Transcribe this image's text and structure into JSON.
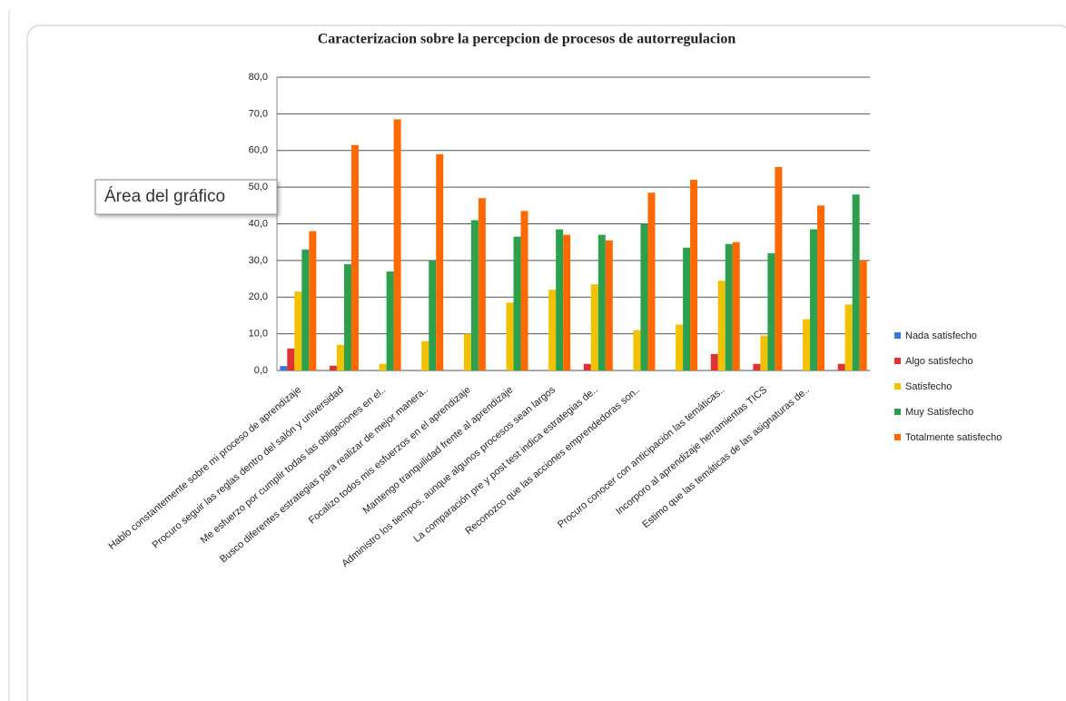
{
  "chart_data": {
    "type": "bar",
    "title": "Caracterizacion sobre  la percepcion de procesos de autorregulacion",
    "tooltip": "Área del gráfico",
    "categories": [
      "Hablo constantemente  sobre mi proceso de aprendizaje",
      "Procuro seguir  las reglas dentro del salón y universidad",
      "Me esfuerzo por cumplir todas  las obligaciones  en el..",
      "Busco diferentes estrategias  para realizar de mejor manera..",
      "Focalizo todos mis esfuerzos en el aprendizaje",
      "Mantengo tranquilidad  frente al aprendizaje",
      "Administro los tiempos, aunque algunos procesos sean largos",
      "La comparación  pre y post test indica estrategias de..",
      "Reconozco que las acciones emprendedoras  son..",
      null,
      "Procuro conocer  con anticipación las temáticas..",
      "Incorporo al aprendizaje  herramientas  TICS",
      "Estimo que las temáticas de las asignaturas de..",
      null
    ],
    "series": [
      {
        "name": "Nada satisfecho",
        "color": "#3a78d8",
        "values": [
          1.2,
          0,
          0,
          0,
          0,
          0,
          0,
          0,
          0,
          0,
          0,
          0,
          0,
          0
        ]
      },
      {
        "name": "Algo satisfecho",
        "color": "#e03232",
        "values": [
          6,
          1.3,
          0,
          0,
          0,
          0,
          0,
          1.8,
          0,
          0,
          4.5,
          1.8,
          0,
          1.8
        ]
      },
      {
        "name": "Satisfecho",
        "color": "#f2c200",
        "values": [
          21.5,
          7,
          1.8,
          8,
          10,
          18.5,
          22,
          23.5,
          11,
          12.5,
          24.5,
          9.5,
          14,
          18
        ]
      },
      {
        "name": "Muy Satisfecho",
        "color": "#2ca04c",
        "values": [
          33,
          29,
          27,
          30,
          41,
          36.5,
          38.5,
          37,
          40,
          33.5,
          34.5,
          32,
          38.5,
          48
        ]
      },
      {
        "name": "Totalmente  satisfecho",
        "color": "#ff6a00",
        "values": [
          38,
          61.5,
          68.5,
          59,
          47,
          43.5,
          37,
          35.5,
          48.5,
          52,
          35,
          55.5,
          45,
          30
        ]
      }
    ],
    "ylim": [
      0,
      80
    ],
    "yticks": [
      {
        "value": 0,
        "label": "0,0"
      },
      {
        "value": 10,
        "label": "10,0"
      },
      {
        "value": 20,
        "label": "20,0"
      },
      {
        "value": 30,
        "label": "30,0"
      },
      {
        "value": 40,
        "label": "40,0"
      },
      {
        "value": 50,
        "label": "50,0"
      },
      {
        "value": 60,
        "label": "60,0"
      },
      {
        "value": 70,
        "label": "70,0"
      },
      {
        "value": 80,
        "label": "80,0"
      }
    ],
    "grid": true,
    "legend": "right"
  }
}
